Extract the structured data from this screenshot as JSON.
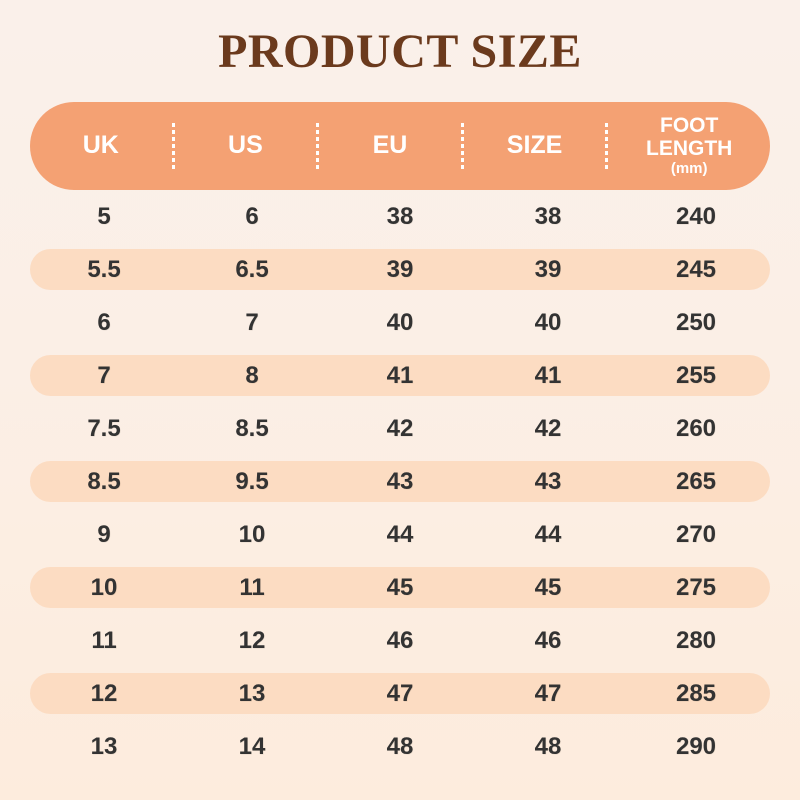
{
  "page": {
    "title": "PRODUCT SIZE"
  },
  "table": {
    "headers": [
      {
        "label": "UK"
      },
      {
        "label": "US"
      },
      {
        "label": "EU"
      },
      {
        "label": "SIZE"
      },
      {
        "label": "FOOT LENGTH",
        "sub": "(mm)"
      }
    ]
  },
  "chart_data": {
    "type": "table",
    "title": "PRODUCT SIZE",
    "columns": [
      "UK",
      "US",
      "EU",
      "SIZE",
      "FOOT LENGTH (mm)"
    ],
    "rows": [
      [
        "5",
        "6",
        "38",
        "38",
        "240"
      ],
      [
        "5.5",
        "6.5",
        "39",
        "39",
        "245"
      ],
      [
        "6",
        "7",
        "40",
        "40",
        "250"
      ],
      [
        "7",
        "8",
        "41",
        "41",
        "255"
      ],
      [
        "7.5",
        "8.5",
        "42",
        "42",
        "260"
      ],
      [
        "8.5",
        "9.5",
        "43",
        "43",
        "265"
      ],
      [
        "9",
        "10",
        "44",
        "44",
        "270"
      ],
      [
        "10",
        "11",
        "45",
        "45",
        "275"
      ],
      [
        "11",
        "12",
        "46",
        "46",
        "280"
      ],
      [
        "12",
        "13",
        "47",
        "47",
        "285"
      ],
      [
        "13",
        "14",
        "48",
        "48",
        "290"
      ]
    ],
    "layout": {
      "highlighted_row_indices": [
        1,
        3,
        5,
        7,
        9
      ],
      "row_style": "alternating pill highlight"
    }
  },
  "colors": {
    "header_bg": "#f4a173",
    "alt_row_bg": "#fcdcc2",
    "title_text": "#6b3a1d",
    "header_text": "#ffffff",
    "cell_text": "#333333",
    "background_top": "#faf0ea",
    "background_bottom": "#fdecdd"
  }
}
